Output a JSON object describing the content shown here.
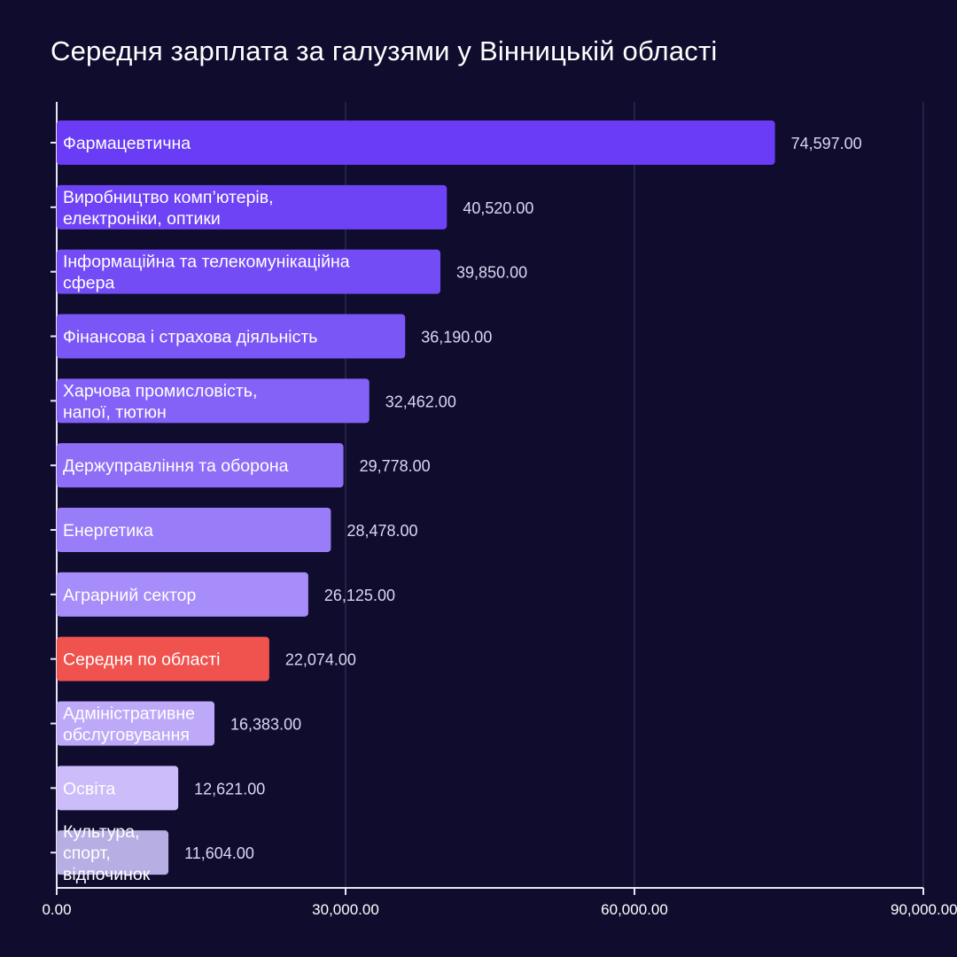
{
  "chart_data": {
    "type": "bar",
    "orientation": "horizontal",
    "title": "Середня зарплата за галузями у Вінницькій області",
    "xlabel": "",
    "ylabel": "",
    "xlim": [
      0,
      90000
    ],
    "grid": true,
    "x_ticks": [
      "0.00",
      "30,000.00",
      "60,000.00",
      "90,000.00"
    ],
    "x_tick_values": [
      0,
      30000,
      60000,
      90000
    ],
    "bars": [
      {
        "label": [
          "Фармацевтична"
        ],
        "value": 74597,
        "value_label": "74,597.00",
        "color": "#6a3cf5"
      },
      {
        "label": [
          "Виробництво комп’ютерів,",
          "електроніки, оптики"
        ],
        "value": 40520,
        "value_label": "40,520.00",
        "color": "#6e43f5"
      },
      {
        "label": [
          "Інформаційна та телекомунікаційна",
          "сфера"
        ],
        "value": 39850,
        "value_label": "39,850.00",
        "color": "#744cf6"
      },
      {
        "label": [
          "Фінансова і страхова діяльність"
        ],
        "value": 36190,
        "value_label": "36,190.00",
        "color": "#7b56f6"
      },
      {
        "label": [
          "Харчова промисловість,",
          "напої, тютюн"
        ],
        "value": 32462,
        "value_label": "32,462.00",
        "color": "#8462f7"
      },
      {
        "label": [
          "Держуправління та оборона"
        ],
        "value": 29778,
        "value_label": "29,778.00",
        "color": "#8e6ef7"
      },
      {
        "label": [
          "Енергетика"
        ],
        "value": 28478,
        "value_label": "28,478.00",
        "color": "#997cf8"
      },
      {
        "label": [
          "Аграрний сектор"
        ],
        "value": 26125,
        "value_label": "26,125.00",
        "color": "#a68df9"
      },
      {
        "label": [
          "Середня по області"
        ],
        "value": 22074,
        "value_label": "22,074.00",
        "color": "#f0524e"
      },
      {
        "label": [
          "Адміністративне",
          "обслуговування"
        ],
        "value": 16383,
        "value_label": "16,383.00",
        "color": "#bea9f9"
      },
      {
        "label": [
          "Освіта"
        ],
        "value": 12621,
        "value_label": "12,621.00",
        "color": "#ccbcfa"
      },
      {
        "label": [
          "Культура,",
          "спорт,",
          "відпочинок"
        ],
        "value": 11604,
        "value_label": "11,604.00",
        "color": "#b7aee3"
      }
    ]
  }
}
